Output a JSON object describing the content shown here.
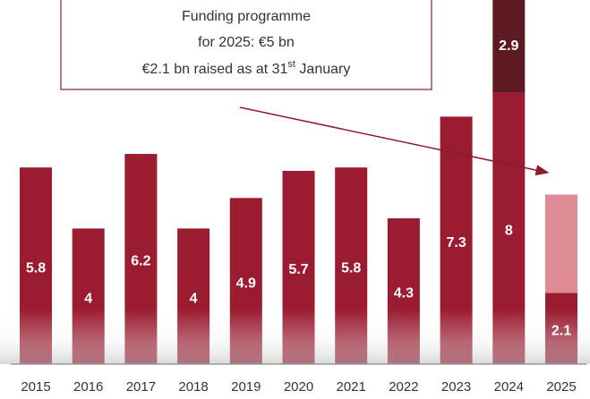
{
  "chart_data": {
    "type": "stacked_bar",
    "categories": [
      "2015",
      "2016",
      "2017",
      "2018",
      "2019",
      "2020",
      "2021",
      "2022",
      "2023",
      "2024",
      "2025"
    ],
    "series": [
      {
        "color": "#9b1b30",
        "values": [
          5.8,
          4.0,
          6.2,
          4.0,
          4.9,
          5.7,
          5.8,
          4.3,
          7.3,
          8.0,
          2.1
        ]
      },
      {
        "color": "#5e1a22",
        "values": [
          null,
          null,
          null,
          null,
          null,
          null,
          null,
          null,
          null,
          2.9,
          null
        ]
      },
      {
        "color": "#df8b96",
        "values": [
          null,
          null,
          null,
          null,
          null,
          null,
          null,
          null,
          null,
          null,
          2.9
        ],
        "labels": false
      }
    ],
    "ylim": [
      0,
      10.74
    ],
    "annotation": {
      "lines": [
        "Funding programme",
        "for 2025: €5 bn"
      ],
      "last_line": [
        "€2.1 bn raised as at 31",
        "st",
        " January"
      ]
    }
  }
}
